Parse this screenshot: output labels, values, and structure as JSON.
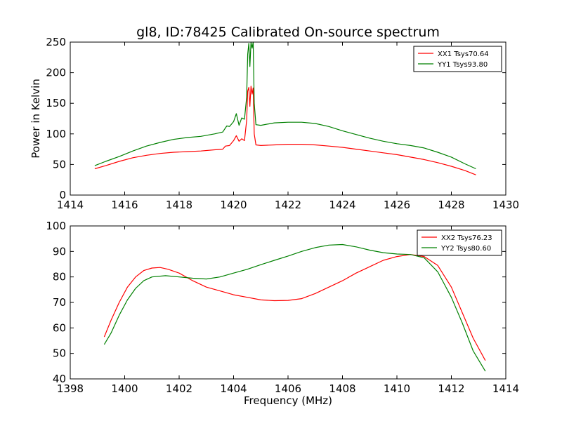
{
  "colors": {
    "series_red": "#ff0000",
    "series_green": "#008000",
    "axes": "#000000",
    "background": "#ffffff"
  },
  "chart_data": [
    {
      "type": "line",
      "title": "gl8, ID:78425 Calibrated On-source spectrum",
      "xlabel": "",
      "ylabel": "Power in Kelvin",
      "xlim": [
        1414,
        1430
      ],
      "ylim": [
        0,
        250
      ],
      "xticks": [
        "1414",
        "1416",
        "1418",
        "1420",
        "1422",
        "1424",
        "1426",
        "1428",
        "1430"
      ],
      "yticks": [
        "0",
        "50",
        "100",
        "150",
        "200",
        "250"
      ],
      "grid": false,
      "legend_position": "top-right",
      "series": [
        {
          "name": "XX1 Tsys70.64",
          "color": "#ff0000",
          "points": [
            [
              1414.9,
              43
            ],
            [
              1415.3,
              48
            ],
            [
              1415.8,
              55
            ],
            [
              1416.3,
              61
            ],
            [
              1416.8,
              65
            ],
            [
              1417.3,
              68
            ],
            [
              1417.8,
              70
            ],
            [
              1418.3,
              71
            ],
            [
              1418.8,
              72
            ],
            [
              1419.3,
              74
            ],
            [
              1419.6,
              75
            ],
            [
              1419.7,
              80
            ],
            [
              1419.85,
              81
            ],
            [
              1420.0,
              89
            ],
            [
              1420.1,
              97
            ],
            [
              1420.2,
              88
            ],
            [
              1420.3,
              92
            ],
            [
              1420.4,
              89
            ],
            [
              1420.48,
              122
            ],
            [
              1420.52,
              170
            ],
            [
              1420.56,
              176
            ],
            [
              1420.6,
              145
            ],
            [
              1420.64,
              178
            ],
            [
              1420.68,
              165
            ],
            [
              1420.72,
              175
            ],
            [
              1420.76,
              100
            ],
            [
              1420.82,
              82
            ],
            [
              1421.0,
              81
            ],
            [
              1421.5,
              82
            ],
            [
              1422.0,
              83
            ],
            [
              1422.5,
              83
            ],
            [
              1423.0,
              82
            ],
            [
              1423.5,
              80
            ],
            [
              1424.0,
              78
            ],
            [
              1424.5,
              75
            ],
            [
              1425.0,
              72
            ],
            [
              1425.5,
              69
            ],
            [
              1426.0,
              66
            ],
            [
              1426.5,
              62
            ],
            [
              1427.0,
              58
            ],
            [
              1427.5,
              53
            ],
            [
              1428.0,
              47
            ],
            [
              1428.5,
              40
            ],
            [
              1428.9,
              33
            ]
          ]
        },
        {
          "name": "YY1 Tsys93.80",
          "color": "#008000",
          "points": [
            [
              1414.9,
              48
            ],
            [
              1415.3,
              55
            ],
            [
              1415.8,
              63
            ],
            [
              1416.3,
              72
            ],
            [
              1416.8,
              80
            ],
            [
              1417.3,
              86
            ],
            [
              1417.8,
              91
            ],
            [
              1418.3,
              94
            ],
            [
              1418.8,
              96
            ],
            [
              1419.3,
              100
            ],
            [
              1419.6,
              103
            ],
            [
              1419.75,
              113
            ],
            [
              1419.85,
              112
            ],
            [
              1420.0,
              120
            ],
            [
              1420.1,
              133
            ],
            [
              1420.2,
              114
            ],
            [
              1420.3,
              126
            ],
            [
              1420.4,
              124
            ],
            [
              1420.48,
              160
            ],
            [
              1420.52,
              230
            ],
            [
              1420.56,
              248
            ],
            [
              1420.6,
              210
            ],
            [
              1420.64,
              250
            ],
            [
              1420.68,
              240
            ],
            [
              1420.72,
              250
            ],
            [
              1420.76,
              150
            ],
            [
              1420.82,
              115
            ],
            [
              1421.0,
              114
            ],
            [
              1421.5,
              118
            ],
            [
              1422.0,
              119
            ],
            [
              1422.5,
              119
            ],
            [
              1423.0,
              117
            ],
            [
              1423.5,
              112
            ],
            [
              1424.0,
              105
            ],
            [
              1424.5,
              99
            ],
            [
              1425.0,
              93
            ],
            [
              1425.5,
              88
            ],
            [
              1426.0,
              84
            ],
            [
              1426.5,
              81
            ],
            [
              1427.0,
              77
            ],
            [
              1427.5,
              70
            ],
            [
              1428.0,
              62
            ],
            [
              1428.5,
              51
            ],
            [
              1428.9,
              43
            ]
          ]
        }
      ]
    },
    {
      "type": "line",
      "title": "",
      "xlabel": "Frequency (MHz)",
      "ylabel": "",
      "xlim": [
        1398,
        1414
      ],
      "ylim": [
        40,
        100
      ],
      "xticks": [
        "1398",
        "1400",
        "1402",
        "1404",
        "1406",
        "1408",
        "1410",
        "1412",
        "1414"
      ],
      "yticks": [
        "40",
        "50",
        "60",
        "70",
        "80",
        "90",
        "100"
      ],
      "grid": false,
      "legend_position": "top-right",
      "series": [
        {
          "name": "XX2 Tsys76.23",
          "color": "#ff0000",
          "points": [
            [
              1399.25,
              56.5
            ],
            [
              1399.5,
              63
            ],
            [
              1399.8,
              70
            ],
            [
              1400.1,
              76
            ],
            [
              1400.4,
              80
            ],
            [
              1400.7,
              82.5
            ],
            [
              1401.0,
              83.5
            ],
            [
              1401.3,
              83.7
            ],
            [
              1401.6,
              83
            ],
            [
              1402.0,
              81.5
            ],
            [
              1402.5,
              78.5
            ],
            [
              1403.0,
              76
            ],
            [
              1403.5,
              74.5
            ],
            [
              1404.0,
              73
            ],
            [
              1404.5,
              72
            ],
            [
              1405.0,
              71
            ],
            [
              1405.5,
              70.7
            ],
            [
              1406.0,
              70.8
            ],
            [
              1406.5,
              71.5
            ],
            [
              1407.0,
              73.5
            ],
            [
              1407.5,
              76
            ],
            [
              1408.0,
              78.5
            ],
            [
              1408.5,
              81.5
            ],
            [
              1409.0,
              84
            ],
            [
              1409.5,
              86.5
            ],
            [
              1410.0,
              88
            ],
            [
              1410.5,
              88.8
            ],
            [
              1411.0,
              88
            ],
            [
              1411.5,
              84.5
            ],
            [
              1412.0,
              76
            ],
            [
              1412.4,
              66
            ],
            [
              1412.8,
              56
            ],
            [
              1413.25,
              47.2
            ]
          ]
        },
        {
          "name": "YY2 Tsys80.60",
          "color": "#008000",
          "points": [
            [
              1399.25,
              53.5
            ],
            [
              1399.5,
              58
            ],
            [
              1399.8,
              65
            ],
            [
              1400.1,
              71
            ],
            [
              1400.4,
              75.5
            ],
            [
              1400.7,
              78.5
            ],
            [
              1401.0,
              80
            ],
            [
              1401.5,
              80.5
            ],
            [
              1402.0,
              80
            ],
            [
              1402.5,
              79.5
            ],
            [
              1403.0,
              79.2
            ],
            [
              1403.5,
              80
            ],
            [
              1404.0,
              81.5
            ],
            [
              1404.5,
              83
            ],
            [
              1405.0,
              84.8
            ],
            [
              1405.5,
              86.5
            ],
            [
              1406.0,
              88.2
            ],
            [
              1406.5,
              90
            ],
            [
              1407.0,
              91.5
            ],
            [
              1407.5,
              92.5
            ],
            [
              1408.0,
              92.7
            ],
            [
              1408.5,
              91.8
            ],
            [
              1409.0,
              90.5
            ],
            [
              1409.5,
              89.5
            ],
            [
              1410.0,
              89
            ],
            [
              1410.5,
              88.8
            ],
            [
              1411.0,
              87.5
            ],
            [
              1411.5,
              82
            ],
            [
              1412.0,
              72
            ],
            [
              1412.4,
              62
            ],
            [
              1412.8,
              51
            ],
            [
              1413.25,
              43
            ]
          ]
        }
      ]
    }
  ]
}
